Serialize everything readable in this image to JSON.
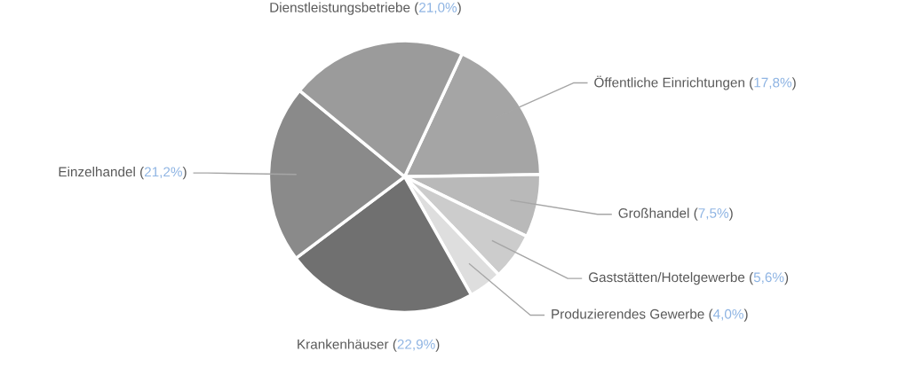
{
  "chart_data": {
    "type": "pie",
    "categories": [
      "Öffentliche Einrichtungen",
      "Großhandel",
      "Gaststätten/Hotelgewerbe",
      "Produzierendes Gewerbe",
      "Krankenhäuser",
      "Einzelhandel",
      "Dienstleistungsbetriebe"
    ],
    "values": [
      17.8,
      7.5,
      5.6,
      4.0,
      22.9,
      21.2,
      21.0
    ],
    "value_labels": [
      "(17,8%)",
      "(7,5%)",
      "(5,6%)",
      "(4,0%)",
      "(22,9%)",
      "(21,2%)",
      "(21,0%)"
    ],
    "colors": [
      "#a5a5a5",
      "#b9b9b9",
      "#cccccc",
      "#dedede",
      "#707070",
      "#8a8a8a",
      "#9b9b9b"
    ]
  }
}
